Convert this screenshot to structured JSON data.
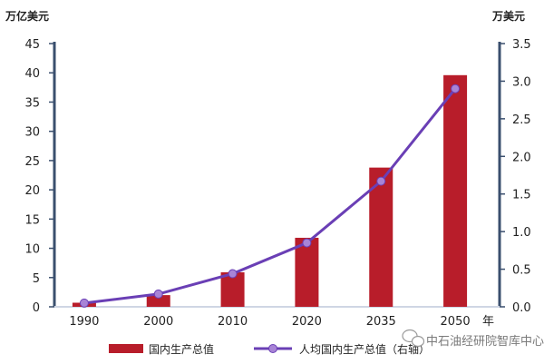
{
  "colors": {
    "bar": "#b81d2a",
    "line": "#6a3fb5",
    "marker": "#a884d6",
    "left_axis": "#3a4f6e",
    "right_axis": "#3a4f6e",
    "grid": "#cfd6e4"
  },
  "watermark": {
    "icon": "wechat-icon",
    "text": "中石油经研院智库中心"
  },
  "chart_data": {
    "type": "bar",
    "categories": [
      "1990",
      "2000",
      "2010",
      "2020",
      "2035",
      "2050"
    ],
    "x_unit": "年",
    "series": [
      {
        "name": "国内生产总值",
        "type": "bar",
        "axis": "left",
        "values": [
          0.7,
          2.0,
          5.9,
          11.8,
          23.8,
          39.6
        ]
      },
      {
        "name": "人均国内生产总值（右轴）",
        "type": "line",
        "axis": "right",
        "values": [
          0.05,
          0.17,
          0.44,
          0.85,
          1.67,
          2.9
        ]
      }
    ],
    "left_axis": {
      "unit": "万亿美元",
      "ylim": [
        0,
        45
      ],
      "ticks": [
        "0",
        "5",
        "10",
        "15",
        "20",
        "25",
        "30",
        "35",
        "40",
        "45"
      ]
    },
    "right_axis": {
      "unit": "万美元",
      "ylim": [
        0,
        3.5
      ],
      "ticks": [
        "0.0",
        "0.5",
        "1.0",
        "1.5",
        "2.0",
        "2.5",
        "3.0",
        "3.5"
      ]
    },
    "grid": false,
    "legend_position": "bottom"
  }
}
